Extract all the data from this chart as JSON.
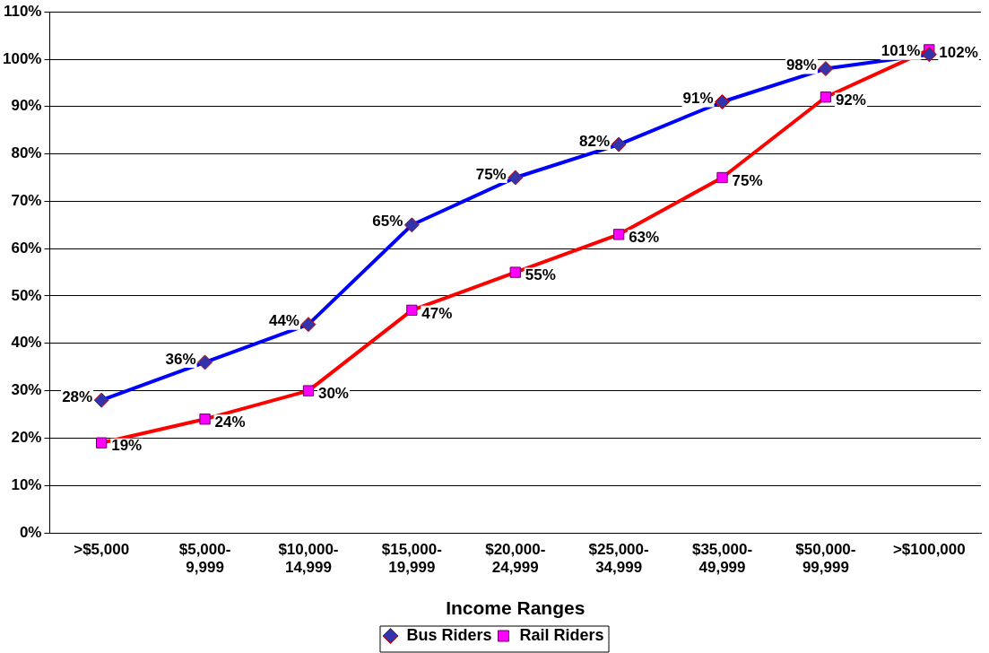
{
  "chart_data": {
    "type": "line",
    "xlabel": "Income Ranges",
    "categories": [
      ">$5,000",
      "$5,000-9,999",
      "$10,000-14,999",
      "$15,000-19,999",
      "$20,000-24,999",
      "$25,000-34,999",
      "$35,000-49,999",
      "$50,000-99,999",
      ">$100,000"
    ],
    "series": [
      {
        "name": "Bus Riders",
        "color": "#0000ff",
        "marker": "diamond",
        "values": [
          28,
          36,
          44,
          65,
          75,
          82,
          91,
          98,
          101
        ],
        "value_labels": [
          "28%",
          "36%",
          "44%",
          "65%",
          "75%",
          "82%",
          "91%",
          "98%",
          "101%"
        ]
      },
      {
        "name": "Rail Riders",
        "color": "#ff0000",
        "marker": "square",
        "values": [
          19,
          24,
          30,
          47,
          55,
          63,
          75,
          92,
          102
        ],
        "value_labels": [
          "19%",
          "24%",
          "30%",
          "47%",
          "55%",
          "63%",
          "75%",
          "92%",
          "102%"
        ]
      }
    ],
    "ylim": [
      0,
      110
    ],
    "yticks": [
      {
        "value": 0,
        "label": "0%"
      },
      {
        "value": 10,
        "label": "10%"
      },
      {
        "value": 20,
        "label": "20%"
      },
      {
        "value": 30,
        "label": "30%"
      },
      {
        "value": 40,
        "label": "40%"
      },
      {
        "value": 50,
        "label": "50%"
      },
      {
        "value": 60,
        "label": "60%"
      },
      {
        "value": 70,
        "label": "70%"
      },
      {
        "value": 80,
        "label": "80%"
      },
      {
        "value": 90,
        "label": "90%"
      },
      {
        "value": 100,
        "label": "100%"
      },
      {
        "value": 110,
        "label": "110%"
      }
    ],
    "grid": "y",
    "legend": "bottom",
    "line_style": "solid"
  }
}
